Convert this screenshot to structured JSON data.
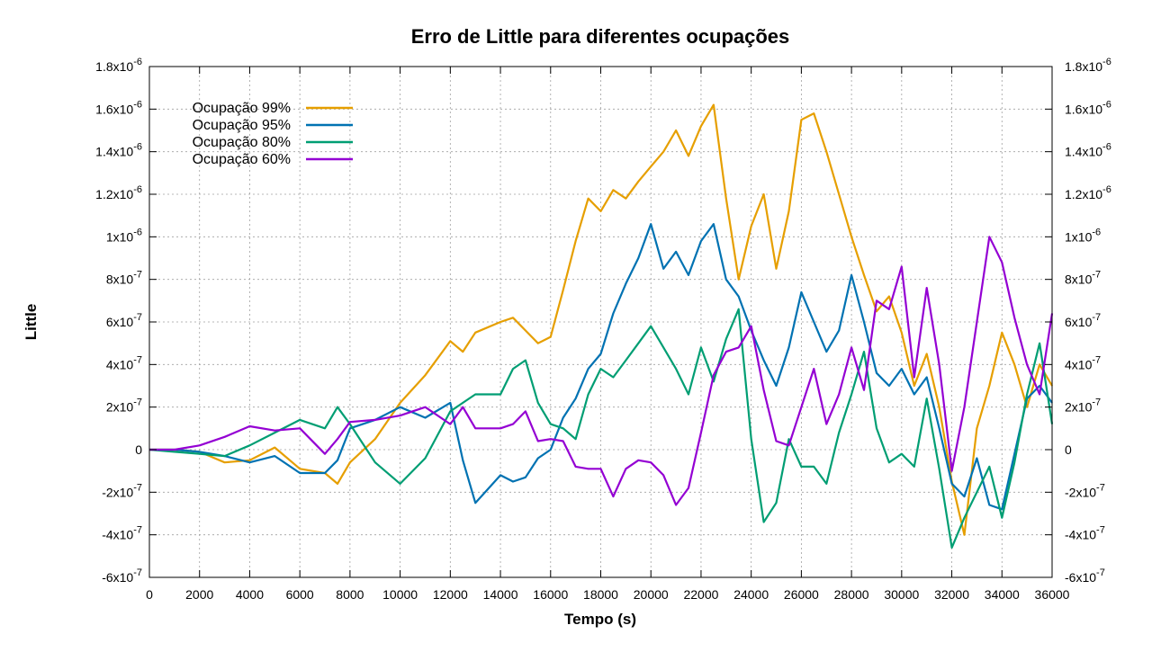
{
  "chart_data": {
    "type": "line",
    "title": "Erro de Little para diferentes ocupações",
    "xlabel": "Tempo (s)",
    "ylabel": "Little",
    "xlim": [
      0,
      36000
    ],
    "ylim": [
      -6e-07,
      1.8e-06
    ],
    "grid": true,
    "legend_position": "top-left",
    "x_ticks": [
      {
        "value": 0,
        "label": "0"
      },
      {
        "value": 2000,
        "label": "2000"
      },
      {
        "value": 4000,
        "label": "4000"
      },
      {
        "value": 6000,
        "label": "6000"
      },
      {
        "value": 8000,
        "label": "8000"
      },
      {
        "value": 10000,
        "label": "10000"
      },
      {
        "value": 12000,
        "label": "12000"
      },
      {
        "value": 14000,
        "label": "14000"
      },
      {
        "value": 16000,
        "label": "16000"
      },
      {
        "value": 18000,
        "label": "18000"
      },
      {
        "value": 20000,
        "label": "20000"
      },
      {
        "value": 22000,
        "label": "22000"
      },
      {
        "value": 24000,
        "label": "24000"
      },
      {
        "value": 26000,
        "label": "26000"
      },
      {
        "value": 28000,
        "label": "28000"
      },
      {
        "value": 30000,
        "label": "30000"
      },
      {
        "value": 32000,
        "label": "32000"
      },
      {
        "value": 34000,
        "label": "34000"
      },
      {
        "value": 36000,
        "label": "36000"
      }
    ],
    "y_ticks": [
      {
        "value": 1.8e-06,
        "mant": "1.8x10",
        "exp": "-6"
      },
      {
        "value": 1.6e-06,
        "mant": "1.6x10",
        "exp": "-6"
      },
      {
        "value": 1.4e-06,
        "mant": "1.4x10",
        "exp": "-6"
      },
      {
        "value": 1.2e-06,
        "mant": "1.2x10",
        "exp": "-6"
      },
      {
        "value": 1e-06,
        "mant": "1x10",
        "exp": "-6"
      },
      {
        "value": 8e-07,
        "mant": "8x10",
        "exp": "-7"
      },
      {
        "value": 6e-07,
        "mant": "6x10",
        "exp": "-7"
      },
      {
        "value": 4e-07,
        "mant": "4x10",
        "exp": "-7"
      },
      {
        "value": 2e-07,
        "mant": "2x10",
        "exp": "-7"
      },
      {
        "value": 0,
        "mant": "0",
        "exp": ""
      },
      {
        "value": -2e-07,
        "mant": "-2x10",
        "exp": "-7"
      },
      {
        "value": -4e-07,
        "mant": "-4x10",
        "exp": "-7"
      },
      {
        "value": -6e-07,
        "mant": "-6x10",
        "exp": "-7"
      }
    ],
    "x": [
      0,
      1000,
      2000,
      3000,
      4000,
      5000,
      6000,
      7000,
      7500,
      8000,
      9000,
      10000,
      11000,
      12000,
      12500,
      13000,
      14000,
      14500,
      15000,
      15500,
      16000,
      16500,
      17000,
      17500,
      18000,
      18500,
      19000,
      19500,
      20000,
      20500,
      21000,
      21500,
      22000,
      22500,
      23000,
      23500,
      24000,
      24500,
      25000,
      25500,
      26000,
      26500,
      27000,
      27500,
      28000,
      28500,
      29000,
      29500,
      30000,
      30500,
      31000,
      31500,
      32000,
      32500,
      33000,
      33500,
      34000,
      34500,
      35000,
      35500,
      36000
    ],
    "series": [
      {
        "name": "Ocupação 99%",
        "color": "#e69f00",
        "values": [
          0,
          0,
          -1e-08,
          -6e-08,
          -5e-08,
          1e-08,
          -9e-08,
          -1.1e-07,
          -1.6e-07,
          -6e-08,
          5e-08,
          2.2e-07,
          3.5e-07,
          5.1e-07,
          4.6e-07,
          5.5e-07,
          6e-07,
          6.2e-07,
          5.6e-07,
          5e-07,
          5.3e-07,
          7.5e-07,
          9.8e-07,
          1.18e-06,
          1.12e-06,
          1.22e-06,
          1.18e-06,
          1.26e-06,
          1.33e-06,
          1.4e-06,
          1.5e-06,
          1.38e-06,
          1.52e-06,
          1.62e-06,
          1.18e-06,
          8e-07,
          1.05e-06,
          1.2e-06,
          8.5e-07,
          1.12e-06,
          1.55e-06,
          1.58e-06,
          1.4e-06,
          1.2e-06,
          1e-06,
          8.2e-07,
          6.5e-07,
          7.2e-07,
          5.5e-07,
          3e-07,
          4.5e-07,
          2e-07,
          -1.5e-07,
          -4e-07,
          1e-07,
          3e-07,
          5.5e-07,
          4e-07,
          2e-07,
          4e-07,
          3e-07
        ]
      },
      {
        "name": "Ocupação 95%",
        "color": "#0072b2",
        "values": [
          0,
          0,
          -1e-08,
          -3e-08,
          -6e-08,
          -3e-08,
          -1.1e-07,
          -1.1e-07,
          -5e-08,
          1e-07,
          1.4e-07,
          2e-07,
          1.5e-07,
          2.2e-07,
          -5e-08,
          -2.5e-07,
          -1.2e-07,
          -1.5e-07,
          -1.3e-07,
          -4e-08,
          0.0,
          1.5e-07,
          2.4e-07,
          3.8e-07,
          4.5e-07,
          6.4e-07,
          7.8e-07,
          9e-07,
          1.06e-06,
          8.5e-07,
          9.3e-07,
          8.2e-07,
          9.8e-07,
          1.06e-06,
          8e-07,
          7.2e-07,
          5.6e-07,
          4.2e-07,
          3e-07,
          4.8e-07,
          7.4e-07,
          6e-07,
          4.6e-07,
          5.6e-07,
          8.2e-07,
          6e-07,
          3.6e-07,
          3e-07,
          3.8e-07,
          2.6e-07,
          3.4e-07,
          1e-07,
          -1.6e-07,
          -2.2e-07,
          -4e-08,
          -2.6e-07,
          -2.8e-07,
          -2e-08,
          2.4e-07,
          3e-07,
          2.2e-07
        ]
      },
      {
        "name": "Ocupação 80%",
        "color": "#009e73",
        "values": [
          0,
          -1e-08,
          -2e-08,
          -3e-08,
          2e-08,
          8e-08,
          1.4e-07,
          1e-07,
          2e-07,
          1.2e-07,
          -6e-08,
          -1.6e-07,
          -4e-08,
          1.8e-07,
          2.2e-07,
          2.6e-07,
          2.6e-07,
          3.8e-07,
          4.2e-07,
          2.2e-07,
          1.2e-07,
          1e-07,
          5e-08,
          2.6e-07,
          3.8e-07,
          3.4e-07,
          4.2e-07,
          5e-07,
          5.8e-07,
          4.8e-07,
          3.8e-07,
          2.6e-07,
          4.8e-07,
          3.2e-07,
          5.2e-07,
          6.6e-07,
          5e-08,
          -3.4e-07,
          -2.5e-07,
          5e-08,
          -8e-08,
          -8e-08,
          -1.6e-07,
          8e-08,
          2.6e-07,
          4.6e-07,
          1e-07,
          -6e-08,
          -2e-08,
          -8e-08,
          2.4e-07,
          -9e-08,
          -4.6e-07,
          -3.2e-07,
          -2e-07,
          -8e-08,
          -3.2e-07,
          -6e-08,
          2.6e-07,
          5e-07,
          1.2e-07
        ]
      },
      {
        "name": "Ocupação 60%",
        "color": "#9400d3",
        "values": [
          0,
          0,
          2e-08,
          6e-08,
          1.1e-07,
          9e-08,
          1e-07,
          -2e-08,
          5e-08,
          1.3e-07,
          1.4e-07,
          1.6e-07,
          2e-07,
          1.2e-07,
          2e-07,
          1e-07,
          1e-07,
          1.2e-07,
          1.8e-07,
          4e-08,
          5e-08,
          4e-08,
          -8e-08,
          -9e-08,
          -9e-08,
          -2.2e-07,
          -9e-08,
          -5e-08,
          -6e-08,
          -1.2e-07,
          -2.6e-07,
          -1.8e-07,
          8e-08,
          3.5e-07,
          4.6e-07,
          4.8e-07,
          5.8e-07,
          2.8e-07,
          4e-08,
          2e-08,
          2e-07,
          3.8e-07,
          1.2e-07,
          2.6e-07,
          4.8e-07,
          2.8e-07,
          7e-07,
          6.6e-07,
          8.6e-07,
          3.4e-07,
          7.6e-07,
          4e-07,
          -1e-07,
          2e-07,
          6e-07,
          1e-06,
          8.8e-07,
          6.2e-07,
          4e-07,
          2.6e-07,
          6.4e-07
        ]
      }
    ]
  }
}
